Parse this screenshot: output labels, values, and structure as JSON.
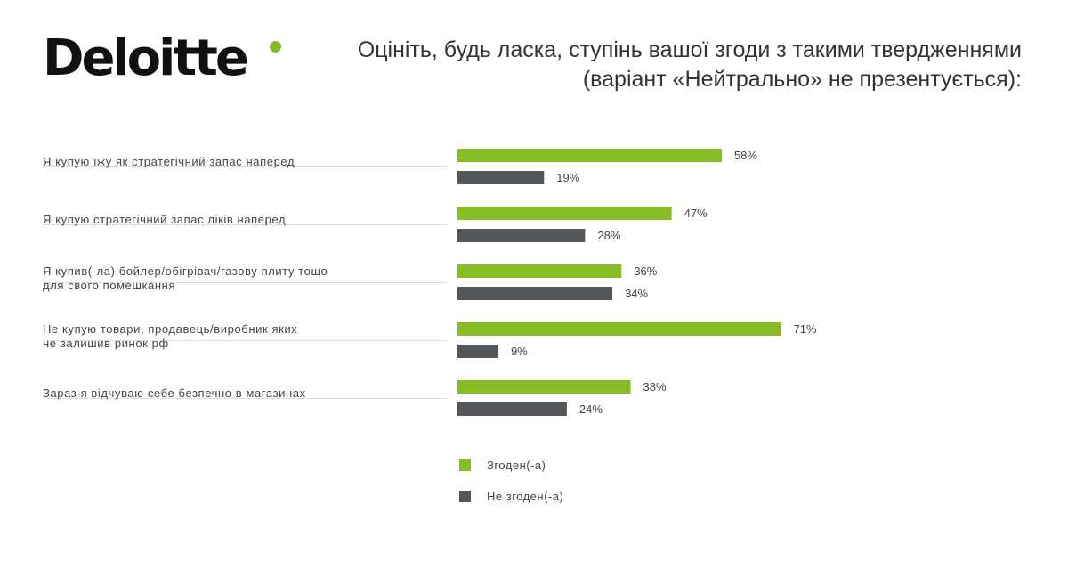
{
  "logo": {
    "text": "Deloitte",
    "dot_color": "#86bc25"
  },
  "title": "Оцініть, будь ласка, ступінь вашої згоди з такими твердженнями (варіант «Нейтрально» не презентується):",
  "colors": {
    "agree": "#86bc25",
    "disagree": "#53565a",
    "divider": "#dddddd"
  },
  "chart_data": {
    "type": "bar",
    "orientation": "horizontal",
    "categories": [
      [
        "Я купую їжу як стратегічний запас наперед"
      ],
      [
        "Я купую стратегічний запас ліків наперед"
      ],
      [
        "Я купив(-ла) бойлер/обігрівач/газову плиту тощо",
        "для свого помешкання"
      ],
      [
        "Не купую товари, продавець/виробник яких",
        "не залишив ринок рф"
      ],
      [
        "Зараз я відчуваю себе безпечно в магазинах"
      ]
    ],
    "series": [
      {
        "name": "Згоден(-а)",
        "values": [
          58,
          47,
          36,
          71,
          38
        ],
        "color": "#86bc25"
      },
      {
        "name": "Не згоден(-а)",
        "values": [
          19,
          28,
          34,
          9,
          24
        ],
        "color": "#53565a"
      }
    ],
    "value_suffix": "%",
    "xlim": [
      0,
      100
    ],
    "grid": false,
    "legend_position": "bottom"
  },
  "legend": [
    {
      "label": "Згоден(-а)",
      "color": "#86bc25"
    },
    {
      "label": "Не згоден(-а)",
      "color": "#53565a"
    }
  ]
}
